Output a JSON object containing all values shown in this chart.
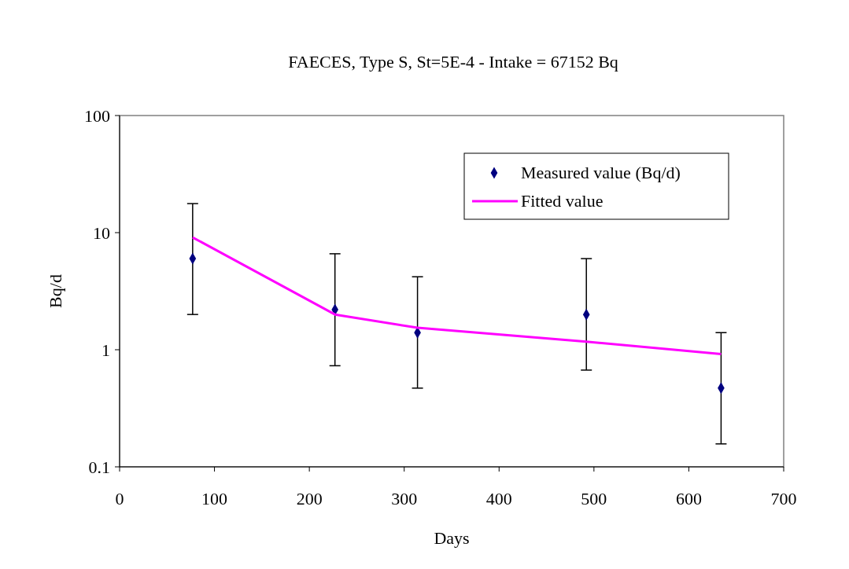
{
  "chart_data": {
    "type": "scatter",
    "title": "FAECES, Type S,  St=5E-4 - Intake = 67152 Bq",
    "xlabel": "Days",
    "ylabel": "Bq/d",
    "log": "y",
    "grid": false,
    "legend": "top right",
    "xlim": [
      0,
      700
    ],
    "xticks": [
      0,
      100,
      200,
      300,
      400,
      500,
      600,
      700
    ],
    "ylim": [
      0.1,
      100
    ],
    "yticks": [
      0.1,
      1,
      10,
      100
    ],
    "series": [
      {
        "name": "Measured value (Bq/d)",
        "color": "#000080",
        "marker": "diamond",
        "x": [
          77,
          227,
          314,
          492,
          634
        ],
        "values": [
          6.0,
          2.2,
          1.4,
          2.0,
          0.47
        ],
        "errors": [
          [
            2.0,
            17.7
          ],
          [
            0.73,
            6.6
          ],
          [
            0.47,
            4.2
          ],
          [
            0.67,
            6.0
          ],
          [
            0.157,
            1.4
          ]
        ]
      },
      {
        "name": "Fitted value",
        "type": "line",
        "color": "#ff00ff",
        "marker": "none",
        "line_style": "solid",
        "x": [
          77,
          227,
          314,
          492,
          634
        ],
        "values": [
          9.1,
          2.0,
          1.54,
          1.17,
          0.92
        ]
      }
    ]
  }
}
